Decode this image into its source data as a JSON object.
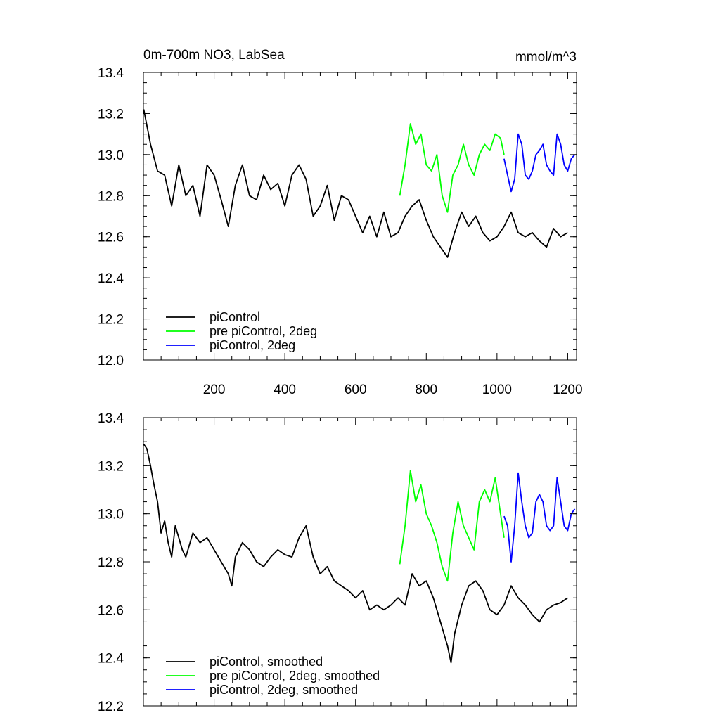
{
  "chart_data": [
    {
      "type": "line",
      "title": "0m-700m NO3, LabSea",
      "units": "mmol/m^3",
      "xlabel": "",
      "ylabel": "",
      "xlim": [
        0,
        1225
      ],
      "ylim": [
        12.0,
        13.4
      ],
      "xticks": [
        200,
        400,
        600,
        800,
        1000,
        1200
      ],
      "xtick_labels": [
        "200",
        "400",
        "600",
        "800",
        "1000",
        "1200"
      ],
      "yticks": [
        12.0,
        12.2,
        12.4,
        12.6,
        12.8,
        13.0,
        13.2,
        13.4
      ],
      "ytick_labels": [
        "12.0",
        "12.2",
        "12.4",
        "12.6",
        "12.8",
        "13.0",
        "13.2",
        "13.4"
      ],
      "legend_position": "bottom-left",
      "series": [
        {
          "name": "piControl",
          "color": "#000000",
          "x": [
            1,
            20,
            40,
            60,
            80,
            100,
            120,
            140,
            160,
            180,
            200,
            220,
            240,
            260,
            280,
            300,
            320,
            340,
            360,
            380,
            400,
            420,
            440,
            460,
            480,
            500,
            520,
            540,
            560,
            580,
            600,
            620,
            640,
            660,
            680,
            700,
            720,
            740,
            760,
            780,
            800,
            820,
            840,
            860,
            880,
            900,
            920,
            940,
            960,
            980,
            1000,
            1020,
            1040,
            1060,
            1080,
            1100,
            1120,
            1140,
            1160,
            1180,
            1200
          ],
          "values": [
            13.22,
            13.05,
            12.92,
            12.9,
            12.75,
            12.95,
            12.8,
            12.85,
            12.7,
            12.95,
            12.9,
            12.78,
            12.65,
            12.85,
            12.95,
            12.8,
            12.78,
            12.9,
            12.83,
            12.86,
            12.75,
            12.9,
            12.95,
            12.88,
            12.7,
            12.75,
            12.85,
            12.68,
            12.8,
            12.78,
            12.7,
            12.62,
            12.7,
            12.6,
            12.72,
            12.6,
            12.62,
            12.7,
            12.75,
            12.78,
            12.68,
            12.6,
            12.55,
            12.5,
            12.62,
            12.72,
            12.65,
            12.7,
            12.62,
            12.58,
            12.6,
            12.65,
            12.72,
            12.62,
            12.6,
            12.62,
            12.58,
            12.55,
            12.64,
            12.6,
            12.62
          ]
        },
        {
          "name": "pre piControl, 2deg",
          "color": "#00ff00",
          "x": [
            725,
            740,
            755,
            770,
            785,
            800,
            815,
            830,
            845,
            860,
            875,
            890,
            905,
            920,
            935,
            950,
            965,
            980,
            995,
            1010,
            1020
          ],
          "values": [
            12.8,
            12.95,
            13.15,
            13.05,
            13.1,
            12.95,
            12.92,
            13.0,
            12.8,
            12.72,
            12.9,
            12.95,
            13.05,
            12.95,
            12.9,
            13.0,
            13.05,
            13.02,
            13.1,
            13.08,
            13.0
          ]
        },
        {
          "name": "piControl, 2deg",
          "color": "#0000ff",
          "x": [
            1020,
            1030,
            1040,
            1050,
            1060,
            1070,
            1080,
            1090,
            1100,
            1110,
            1120,
            1130,
            1140,
            1150,
            1160,
            1170,
            1180,
            1190,
            1200,
            1210,
            1220
          ],
          "values": [
            12.98,
            12.9,
            12.82,
            12.88,
            13.1,
            13.05,
            12.9,
            12.88,
            12.92,
            13.0,
            13.02,
            13.05,
            12.95,
            12.92,
            12.9,
            13.1,
            13.05,
            12.95,
            12.92,
            12.98,
            13.0
          ]
        }
      ]
    },
    {
      "type": "line",
      "title": "",
      "xlabel": "",
      "ylabel": "",
      "xlim": [
        0,
        1225
      ],
      "ylim": [
        12.2,
        13.4
      ],
      "yticks": [
        12.2,
        12.4,
        12.6,
        12.8,
        13.0,
        13.2,
        13.4
      ],
      "ytick_labels": [
        "12.2",
        "12.4",
        "12.6",
        "12.8",
        "13.0",
        "13.2",
        "13.4"
      ],
      "legend_position": "bottom-left",
      "series": [
        {
          "name": "piControl, smoothed",
          "color": "#000000",
          "x": [
            1,
            10,
            20,
            30,
            40,
            50,
            60,
            70,
            80,
            90,
            100,
            110,
            120,
            140,
            160,
            180,
            200,
            220,
            240,
            250,
            260,
            280,
            300,
            320,
            340,
            360,
            380,
            400,
            420,
            440,
            460,
            480,
            500,
            520,
            540,
            560,
            580,
            600,
            620,
            640,
            660,
            680,
            700,
            720,
            740,
            760,
            780,
            800,
            820,
            840,
            860,
            870,
            880,
            900,
            920,
            940,
            960,
            980,
            1000,
            1020,
            1040,
            1060,
            1080,
            1100,
            1120,
            1140,
            1160,
            1180,
            1200
          ],
          "values": [
            13.29,
            13.27,
            13.2,
            13.12,
            13.05,
            12.92,
            12.97,
            12.88,
            12.82,
            12.95,
            12.9,
            12.85,
            12.82,
            12.92,
            12.88,
            12.9,
            12.85,
            12.8,
            12.75,
            12.7,
            12.82,
            12.88,
            12.85,
            12.8,
            12.78,
            12.82,
            12.85,
            12.83,
            12.82,
            12.9,
            12.95,
            12.82,
            12.75,
            12.78,
            12.72,
            12.7,
            12.68,
            12.65,
            12.68,
            12.6,
            12.62,
            12.6,
            12.62,
            12.65,
            12.62,
            12.75,
            12.7,
            12.72,
            12.65,
            12.55,
            12.45,
            12.38,
            12.5,
            12.62,
            12.7,
            12.72,
            12.68,
            12.6,
            12.58,
            12.62,
            12.7,
            12.65,
            12.62,
            12.58,
            12.55,
            12.6,
            12.62,
            12.63,
            12.65
          ]
        },
        {
          "name": "pre piControl, 2deg, smoothed",
          "color": "#00ff00",
          "x": [
            725,
            740,
            755,
            770,
            785,
            800,
            815,
            830,
            845,
            860,
            875,
            890,
            905,
            920,
            935,
            950,
            965,
            980,
            995,
            1010,
            1020
          ],
          "values": [
            12.79,
            12.95,
            13.18,
            13.05,
            13.12,
            13.0,
            12.95,
            12.88,
            12.78,
            12.72,
            12.92,
            13.05,
            12.95,
            12.9,
            12.85,
            13.05,
            13.1,
            13.05,
            13.15,
            13.0,
            12.9
          ]
        },
        {
          "name": "piControl, 2deg, smoothed",
          "color": "#0000ff",
          "x": [
            1020,
            1030,
            1040,
            1050,
            1060,
            1070,
            1080,
            1090,
            1100,
            1110,
            1120,
            1130,
            1140,
            1150,
            1160,
            1170,
            1180,
            1190,
            1200,
            1210,
            1220
          ],
          "values": [
            12.99,
            12.95,
            12.8,
            12.95,
            13.17,
            13.05,
            12.95,
            12.9,
            12.92,
            13.05,
            13.08,
            13.05,
            12.95,
            12.93,
            12.95,
            13.15,
            13.05,
            12.95,
            12.93,
            13.0,
            13.02
          ]
        }
      ]
    }
  ]
}
